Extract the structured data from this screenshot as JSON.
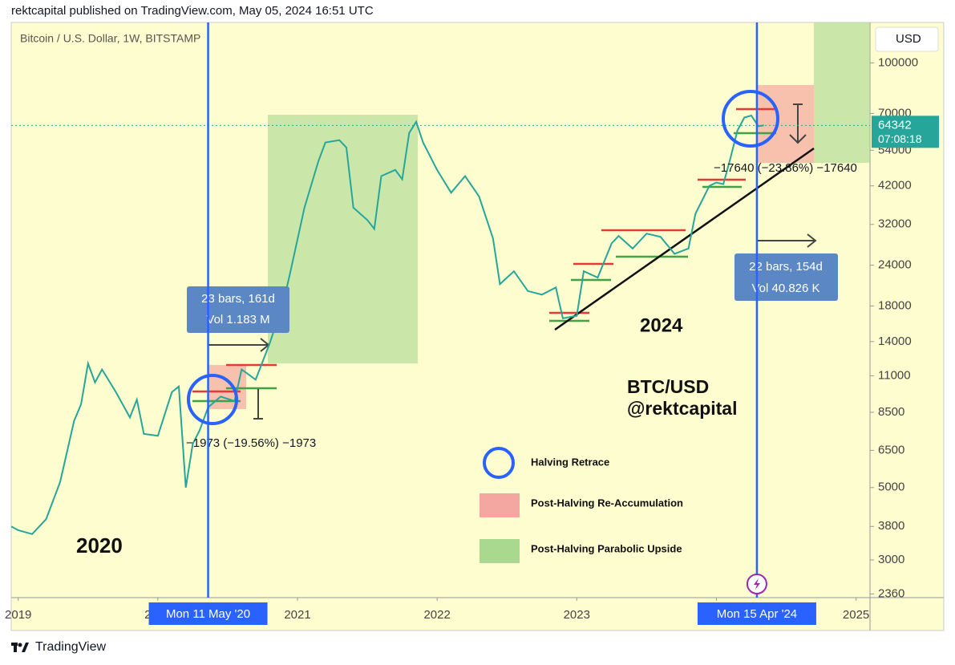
{
  "header": "rektcapital published on TradingView.com, May 05, 2024 16:51 UTC",
  "footer": "TradingView",
  "chart_data": {
    "type": "line",
    "title": "Bitcoin / U.S. Dollar, 1W, BITSTAMP",
    "currency": "USD",
    "log_scale": true,
    "color": "#26a69a",
    "x": [
      2018.95,
      2019.0,
      2019.1,
      2019.2,
      2019.3,
      2019.4,
      2019.45,
      2019.5,
      2019.55,
      2019.6,
      2019.7,
      2019.8,
      2019.85,
      2019.9,
      2020.0,
      2020.1,
      2020.15,
      2020.2,
      2020.25,
      2020.3,
      2020.36,
      2020.45,
      2020.55,
      2020.6,
      2020.7,
      2020.8,
      2020.9,
      2020.95,
      2021.05,
      2021.15,
      2021.2,
      2021.3,
      2021.35,
      2021.4,
      2021.5,
      2021.55,
      2021.6,
      2021.7,
      2021.75,
      2021.8,
      2021.85,
      2021.9,
      2022.0,
      2022.1,
      2022.2,
      2022.3,
      2022.4,
      2022.45,
      2022.55,
      2022.65,
      2022.75,
      2022.85,
      2022.9,
      2023.0,
      2023.05,
      2023.15,
      2023.25,
      2023.3,
      2023.4,
      2023.5,
      2023.6,
      2023.7,
      2023.8,
      2023.85,
      2023.95,
      2024.0,
      2024.05,
      2024.1,
      2024.15,
      2024.2,
      2024.25,
      2024.3,
      2024.34
    ],
    "values": [
      3800,
      3700,
      3600,
      4000,
      5200,
      8000,
      9000,
      12000,
      10500,
      11500,
      9800,
      8200,
      9300,
      7300,
      7200,
      9800,
      10200,
      5000,
      6800,
      7500,
      8800,
      9500,
      9200,
      11500,
      10700,
      13800,
      18500,
      23000,
      36000,
      50000,
      57000,
      58000,
      55000,
      36000,
      33000,
      31000,
      45000,
      47000,
      44000,
      61000,
      66000,
      57000,
      47000,
      40000,
      45000,
      39000,
      29000,
      21000,
      23000,
      20000,
      19500,
      20500,
      16500,
      16800,
      23000,
      22000,
      28000,
      29500,
      27000,
      30000,
      29300,
      26000,
      27000,
      34500,
      42000,
      43000,
      42500,
      51000,
      62000,
      68000,
      69000,
      64000,
      64342
    ],
    "xlim": [
      2018.95,
      2025.1
    ],
    "xticks": [
      2019,
      2020,
      2021,
      2022,
      2023,
      2024,
      2025
    ],
    "ylim": [
      2300,
      133000
    ],
    "yticks": [
      100000,
      70000,
      54000,
      42000,
      32000,
      24000,
      18000,
      14000,
      11000,
      8500,
      6500,
      5000,
      3800,
      3000,
      2360
    ],
    "last_price": 64342,
    "countdown": "07:08:18",
    "markers": [
      {
        "x": 2020.36,
        "label": "Mon 11 May '20"
      },
      {
        "x": 2024.29,
        "label": "Mon 15 Apr '24"
      }
    ],
    "annotations": {
      "range_2020": [
        "23 bars, 161d",
        "Vol 1.183 M"
      ],
      "range_2024": [
        "22 bars, 154d",
        "Vol 40.826 K"
      ],
      "retrace_2020": "−1973 (−19.56%) −1973",
      "retrace_2024": "−17640 (−23.86%) −17640",
      "year_2020": "2020",
      "year_2024": "2024",
      "pair": "BTC/USD",
      "handle": "@rektcapital"
    },
    "legend": [
      "Halving Retrace",
      "Post-Halving Re-Accumulation",
      "Post-Halving Parabolic Upside"
    ]
  }
}
